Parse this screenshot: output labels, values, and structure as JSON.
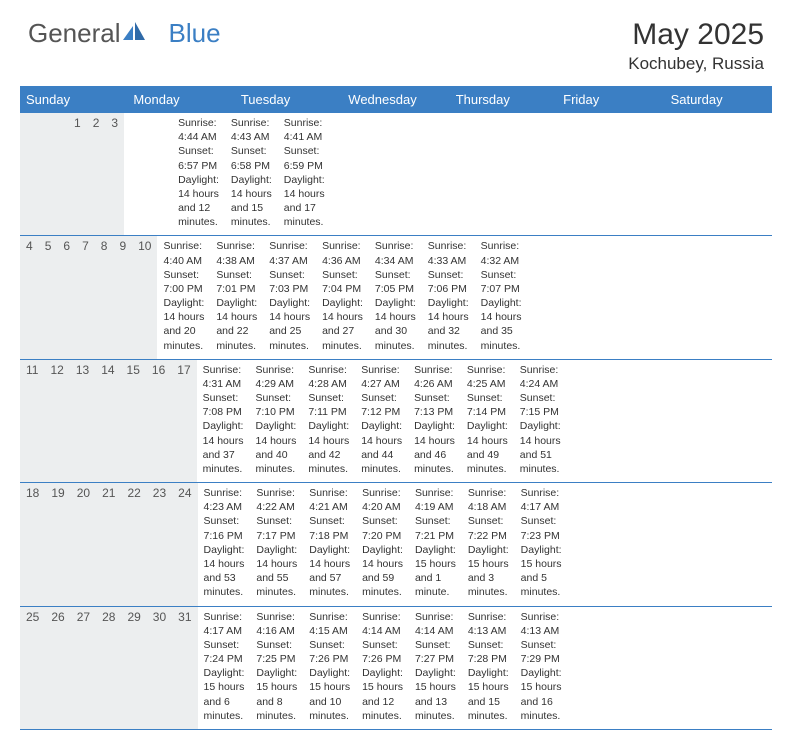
{
  "logo": {
    "part1": "General",
    "part2": "Blue"
  },
  "title": "May 2025",
  "location": "Kochubey, Russia",
  "colors": {
    "header_bg": "#3b7fc4",
    "daynum_bg": "#eceeef",
    "rule": "#3b7fc4",
    "text": "#333333",
    "logo_gray": "#555555"
  },
  "daysOfWeek": [
    "Sunday",
    "Monday",
    "Tuesday",
    "Wednesday",
    "Thursday",
    "Friday",
    "Saturday"
  ],
  "weeks": [
    [
      {
        "num": "",
        "sunrise": "",
        "sunset": "",
        "daylight": ""
      },
      {
        "num": "",
        "sunrise": "",
        "sunset": "",
        "daylight": ""
      },
      {
        "num": "",
        "sunrise": "",
        "sunset": "",
        "daylight": ""
      },
      {
        "num": "",
        "sunrise": "",
        "sunset": "",
        "daylight": ""
      },
      {
        "num": "1",
        "sunrise": "Sunrise: 4:44 AM",
        "sunset": "Sunset: 6:57 PM",
        "daylight": "Daylight: 14 hours and 12 minutes."
      },
      {
        "num": "2",
        "sunrise": "Sunrise: 4:43 AM",
        "sunset": "Sunset: 6:58 PM",
        "daylight": "Daylight: 14 hours and 15 minutes."
      },
      {
        "num": "3",
        "sunrise": "Sunrise: 4:41 AM",
        "sunset": "Sunset: 6:59 PM",
        "daylight": "Daylight: 14 hours and 17 minutes."
      }
    ],
    [
      {
        "num": "4",
        "sunrise": "Sunrise: 4:40 AM",
        "sunset": "Sunset: 7:00 PM",
        "daylight": "Daylight: 14 hours and 20 minutes."
      },
      {
        "num": "5",
        "sunrise": "Sunrise: 4:38 AM",
        "sunset": "Sunset: 7:01 PM",
        "daylight": "Daylight: 14 hours and 22 minutes."
      },
      {
        "num": "6",
        "sunrise": "Sunrise: 4:37 AM",
        "sunset": "Sunset: 7:03 PM",
        "daylight": "Daylight: 14 hours and 25 minutes."
      },
      {
        "num": "7",
        "sunrise": "Sunrise: 4:36 AM",
        "sunset": "Sunset: 7:04 PM",
        "daylight": "Daylight: 14 hours and 27 minutes."
      },
      {
        "num": "8",
        "sunrise": "Sunrise: 4:34 AM",
        "sunset": "Sunset: 7:05 PM",
        "daylight": "Daylight: 14 hours and 30 minutes."
      },
      {
        "num": "9",
        "sunrise": "Sunrise: 4:33 AM",
        "sunset": "Sunset: 7:06 PM",
        "daylight": "Daylight: 14 hours and 32 minutes."
      },
      {
        "num": "10",
        "sunrise": "Sunrise: 4:32 AM",
        "sunset": "Sunset: 7:07 PM",
        "daylight": "Daylight: 14 hours and 35 minutes."
      }
    ],
    [
      {
        "num": "11",
        "sunrise": "Sunrise: 4:31 AM",
        "sunset": "Sunset: 7:08 PM",
        "daylight": "Daylight: 14 hours and 37 minutes."
      },
      {
        "num": "12",
        "sunrise": "Sunrise: 4:29 AM",
        "sunset": "Sunset: 7:10 PM",
        "daylight": "Daylight: 14 hours and 40 minutes."
      },
      {
        "num": "13",
        "sunrise": "Sunrise: 4:28 AM",
        "sunset": "Sunset: 7:11 PM",
        "daylight": "Daylight: 14 hours and 42 minutes."
      },
      {
        "num": "14",
        "sunrise": "Sunrise: 4:27 AM",
        "sunset": "Sunset: 7:12 PM",
        "daylight": "Daylight: 14 hours and 44 minutes."
      },
      {
        "num": "15",
        "sunrise": "Sunrise: 4:26 AM",
        "sunset": "Sunset: 7:13 PM",
        "daylight": "Daylight: 14 hours and 46 minutes."
      },
      {
        "num": "16",
        "sunrise": "Sunrise: 4:25 AM",
        "sunset": "Sunset: 7:14 PM",
        "daylight": "Daylight: 14 hours and 49 minutes."
      },
      {
        "num": "17",
        "sunrise": "Sunrise: 4:24 AM",
        "sunset": "Sunset: 7:15 PM",
        "daylight": "Daylight: 14 hours and 51 minutes."
      }
    ],
    [
      {
        "num": "18",
        "sunrise": "Sunrise: 4:23 AM",
        "sunset": "Sunset: 7:16 PM",
        "daylight": "Daylight: 14 hours and 53 minutes."
      },
      {
        "num": "19",
        "sunrise": "Sunrise: 4:22 AM",
        "sunset": "Sunset: 7:17 PM",
        "daylight": "Daylight: 14 hours and 55 minutes."
      },
      {
        "num": "20",
        "sunrise": "Sunrise: 4:21 AM",
        "sunset": "Sunset: 7:18 PM",
        "daylight": "Daylight: 14 hours and 57 minutes."
      },
      {
        "num": "21",
        "sunrise": "Sunrise: 4:20 AM",
        "sunset": "Sunset: 7:20 PM",
        "daylight": "Daylight: 14 hours and 59 minutes."
      },
      {
        "num": "22",
        "sunrise": "Sunrise: 4:19 AM",
        "sunset": "Sunset: 7:21 PM",
        "daylight": "Daylight: 15 hours and 1 minute."
      },
      {
        "num": "23",
        "sunrise": "Sunrise: 4:18 AM",
        "sunset": "Sunset: 7:22 PM",
        "daylight": "Daylight: 15 hours and 3 minutes."
      },
      {
        "num": "24",
        "sunrise": "Sunrise: 4:17 AM",
        "sunset": "Sunset: 7:23 PM",
        "daylight": "Daylight: 15 hours and 5 minutes."
      }
    ],
    [
      {
        "num": "25",
        "sunrise": "Sunrise: 4:17 AM",
        "sunset": "Sunset: 7:24 PM",
        "daylight": "Daylight: 15 hours and 6 minutes."
      },
      {
        "num": "26",
        "sunrise": "Sunrise: 4:16 AM",
        "sunset": "Sunset: 7:25 PM",
        "daylight": "Daylight: 15 hours and 8 minutes."
      },
      {
        "num": "27",
        "sunrise": "Sunrise: 4:15 AM",
        "sunset": "Sunset: 7:26 PM",
        "daylight": "Daylight: 15 hours and 10 minutes."
      },
      {
        "num": "28",
        "sunrise": "Sunrise: 4:14 AM",
        "sunset": "Sunset: 7:26 PM",
        "daylight": "Daylight: 15 hours and 12 minutes."
      },
      {
        "num": "29",
        "sunrise": "Sunrise: 4:14 AM",
        "sunset": "Sunset: 7:27 PM",
        "daylight": "Daylight: 15 hours and 13 minutes."
      },
      {
        "num": "30",
        "sunrise": "Sunrise: 4:13 AM",
        "sunset": "Sunset: 7:28 PM",
        "daylight": "Daylight: 15 hours and 15 minutes."
      },
      {
        "num": "31",
        "sunrise": "Sunrise: 4:13 AM",
        "sunset": "Sunset: 7:29 PM",
        "daylight": "Daylight: 15 hours and 16 minutes."
      }
    ]
  ]
}
